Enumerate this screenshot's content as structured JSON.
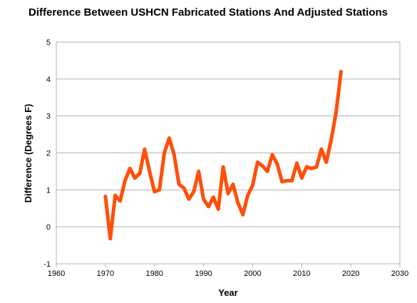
{
  "chart_data": {
    "type": "line",
    "title": "Difference Between USHCN Fabricated Stations And Adjusted Stations",
    "xlabel": "Year",
    "ylabel": "Difference (Degrees F)",
    "xlim": [
      1960,
      2030
    ],
    "ylim": [
      -1,
      5
    ],
    "xticks": [
      1960,
      1970,
      1980,
      1990,
      2000,
      2010,
      2020,
      2030
    ],
    "yticks": [
      -1,
      0,
      1,
      2,
      3,
      4,
      5
    ],
    "grid": "horizontal",
    "legend": "none",
    "series": [
      {
        "color": "#ff4f0a",
        "points": [
          [
            1970,
            0.82
          ],
          [
            1971,
            -0.32
          ],
          [
            1972,
            0.85
          ],
          [
            1973,
            0.7
          ],
          [
            1974,
            1.25
          ],
          [
            1975,
            1.58
          ],
          [
            1976,
            1.32
          ],
          [
            1977,
            1.45
          ],
          [
            1978,
            2.1
          ],
          [
            1979,
            1.5
          ],
          [
            1980,
            0.95
          ],
          [
            1981,
            1.0
          ],
          [
            1982,
            2.0
          ],
          [
            1983,
            2.4
          ],
          [
            1984,
            1.95
          ],
          [
            1985,
            1.15
          ],
          [
            1986,
            1.05
          ],
          [
            1987,
            0.75
          ],
          [
            1988,
            0.95
          ],
          [
            1989,
            1.5
          ],
          [
            1990,
            0.75
          ],
          [
            1991,
            0.55
          ],
          [
            1992,
            0.8
          ],
          [
            1993,
            0.48
          ],
          [
            1994,
            1.62
          ],
          [
            1995,
            0.9
          ],
          [
            1996,
            1.15
          ],
          [
            1997,
            0.65
          ],
          [
            1998,
            0.33
          ],
          [
            1999,
            0.85
          ],
          [
            2000,
            1.12
          ],
          [
            2001,
            1.75
          ],
          [
            2002,
            1.65
          ],
          [
            2003,
            1.5
          ],
          [
            2004,
            1.95
          ],
          [
            2005,
            1.7
          ],
          [
            2006,
            1.22
          ],
          [
            2007,
            1.25
          ],
          [
            2008,
            1.25
          ],
          [
            2009,
            1.72
          ],
          [
            2010,
            1.32
          ],
          [
            2011,
            1.62
          ],
          [
            2012,
            1.58
          ],
          [
            2013,
            1.62
          ],
          [
            2014,
            2.1
          ],
          [
            2015,
            1.75
          ],
          [
            2016,
            2.35
          ],
          [
            2017,
            3.1
          ],
          [
            2018,
            4.2
          ]
        ]
      }
    ]
  }
}
